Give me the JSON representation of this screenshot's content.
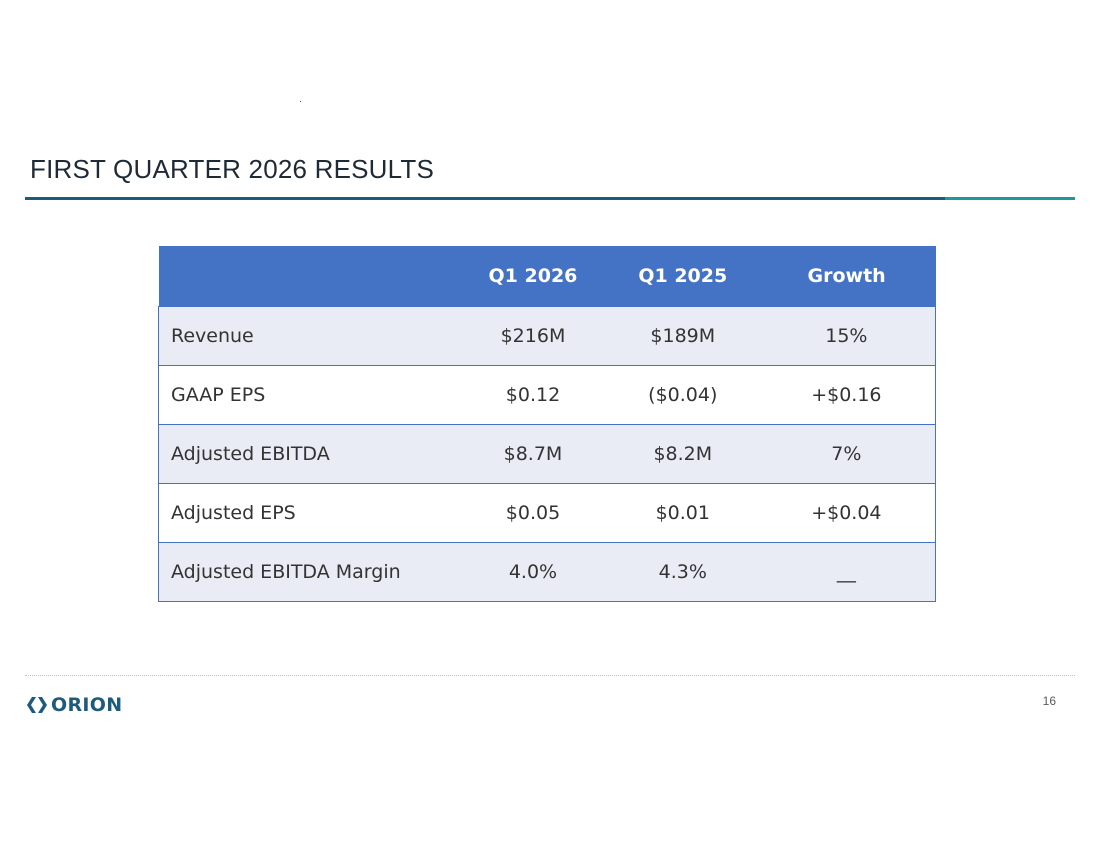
{
  "slide": {
    "title": "FIRST QUARTER 2026 RESULTS",
    "page_number": "16"
  },
  "table": {
    "headers": [
      "",
      "Q1 2026",
      "Q1 2025",
      "Growth"
    ],
    "rows": [
      [
        "Revenue",
        "$216M",
        "$189M",
        "15%"
      ],
      [
        "GAAP EPS",
        "$0.12",
        "($0.04)",
        "+$0.16"
      ],
      [
        "Adjusted EBITDA",
        "$8.7M",
        "$8.2M",
        "7%"
      ],
      [
        "Adjusted EPS",
        "$0.05",
        "$0.01",
        "+$0.04"
      ],
      [
        "Adjusted EBITDA Margin",
        "4.0%",
        "4.3%",
        "__"
      ]
    ]
  },
  "logo": {
    "text": "ORION",
    "icon": "orion-diamond-icon"
  },
  "colors": {
    "header_fill": "#4472c4",
    "row_band": "#e9ecf5",
    "title_rule": "#1d5b7c",
    "title_rule_accent": "#1f9a92",
    "brand": "#1d5b7c"
  }
}
